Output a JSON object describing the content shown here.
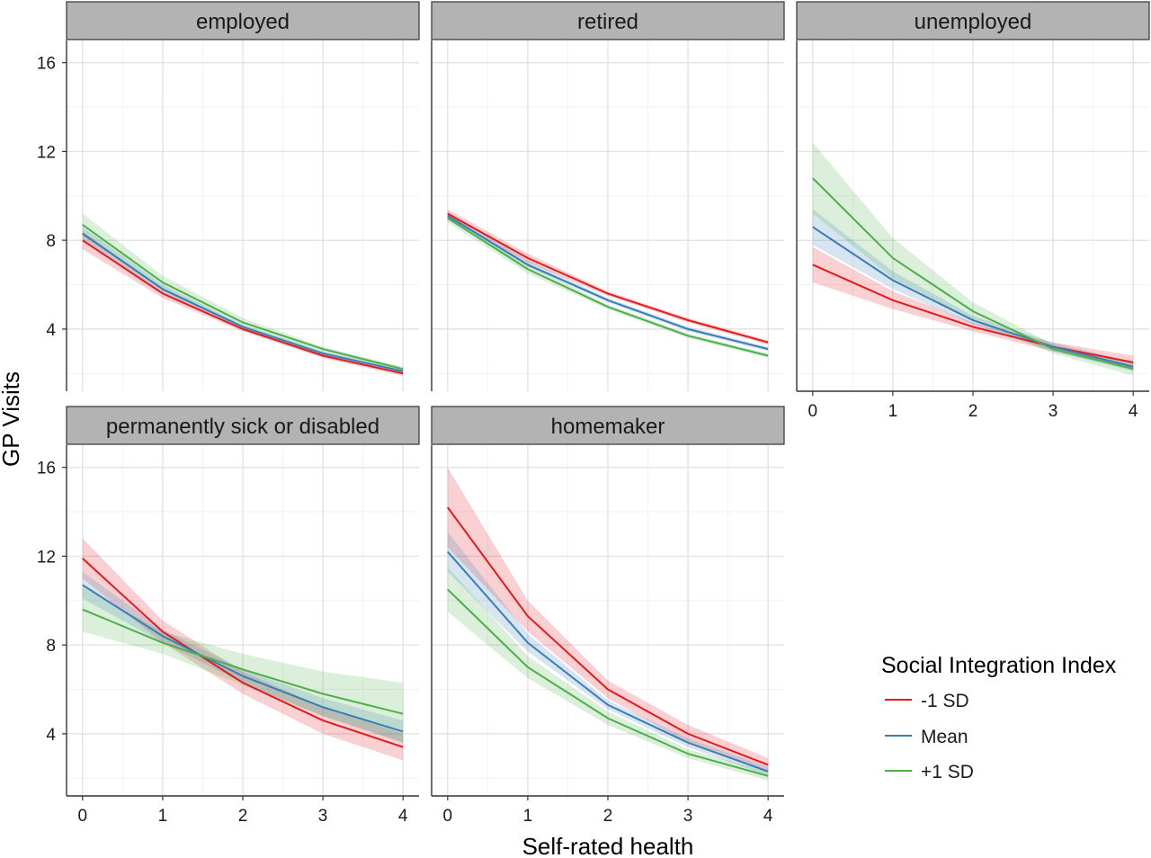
{
  "chart_data": {
    "type": "line",
    "xlabel": "Self-rated health",
    "ylabel": "GP Visits",
    "x": [
      0,
      1,
      2,
      3,
      4
    ],
    "x_ticks": [
      "0",
      "1",
      "2",
      "3",
      "4"
    ],
    "y_ticks": [
      "4",
      "8",
      "12",
      "16"
    ],
    "xlim": [
      -0.2,
      4.2
    ],
    "ylim": [
      1.2,
      17
    ],
    "grid": true,
    "legend": {
      "title": "Social Integration Index",
      "placement": "right",
      "entries": [
        "-1 SD",
        "Mean",
        "+1 SD"
      ]
    },
    "colors": {
      "-1 SD": "#e41a1c",
      "Mean": "#377eb8",
      "+1 SD": "#4daf4a"
    },
    "panels": [
      {
        "title": "employed",
        "series": [
          {
            "name": "-1 SD",
            "values": [
              8.0,
              5.6,
              4.0,
              2.8,
              2.0
            ],
            "lower": [
              7.6,
              5.4,
              3.9,
              2.7,
              1.9
            ],
            "upper": [
              8.4,
              5.8,
              4.1,
              2.9,
              2.1
            ]
          },
          {
            "name": "Mean",
            "values": [
              8.3,
              5.8,
              4.1,
              2.9,
              2.1
            ],
            "lower": [
              8.0,
              5.6,
              4.0,
              2.8,
              2.0
            ],
            "upper": [
              8.6,
              6.0,
              4.2,
              3.0,
              2.2
            ]
          },
          {
            "name": "+1 SD",
            "values": [
              8.7,
              6.1,
              4.3,
              3.1,
              2.2
            ],
            "lower": [
              8.2,
              5.8,
              4.1,
              2.9,
              2.1
            ],
            "upper": [
              9.2,
              6.4,
              4.5,
              3.2,
              2.3
            ]
          }
        ]
      },
      {
        "title": "retired",
        "series": [
          {
            "name": "-1 SD",
            "values": [
              9.2,
              7.2,
              5.6,
              4.4,
              3.4
            ],
            "lower": [
              9.0,
              7.0,
              5.5,
              4.3,
              3.3
            ],
            "upper": [
              9.4,
              7.4,
              5.7,
              4.5,
              3.5
            ]
          },
          {
            "name": "Mean",
            "values": [
              9.1,
              6.9,
              5.3,
              4.0,
              3.1
            ],
            "lower": [
              8.9,
              6.8,
              5.2,
              3.9,
              3.0
            ],
            "upper": [
              9.3,
              7.1,
              5.4,
              4.1,
              3.2
            ]
          },
          {
            "name": "+1 SD",
            "values": [
              9.0,
              6.7,
              5.0,
              3.7,
              2.8
            ],
            "lower": [
              8.8,
              6.5,
              4.9,
              3.6,
              2.7
            ],
            "upper": [
              9.2,
              6.9,
              5.1,
              3.8,
              2.9
            ]
          }
        ]
      },
      {
        "title": "unemployed",
        "series": [
          {
            "name": "-1 SD",
            "values": [
              6.9,
              5.3,
              4.1,
              3.2,
              2.5
            ],
            "lower": [
              6.1,
              4.9,
              3.9,
              3.0,
              2.2
            ],
            "upper": [
              7.7,
              5.7,
              4.3,
              3.4,
              2.8
            ]
          },
          {
            "name": "Mean",
            "values": [
              8.6,
              6.2,
              4.4,
              3.2,
              2.3
            ],
            "lower": [
              7.8,
              5.8,
              4.2,
              3.0,
              2.1
            ],
            "upper": [
              9.4,
              6.6,
              4.6,
              3.4,
              2.5
            ]
          },
          {
            "name": "+1 SD",
            "values": [
              10.8,
              7.2,
              4.8,
              3.1,
              2.2
            ],
            "lower": [
              9.2,
              6.3,
              4.4,
              2.9,
              1.9
            ],
            "upper": [
              12.4,
              8.1,
              5.2,
              3.3,
              2.5
            ]
          }
        ]
      },
      {
        "title": "permanently sick or disabled",
        "series": [
          {
            "name": "-1 SD",
            "values": [
              11.9,
              8.6,
              6.3,
              4.6,
              3.4
            ],
            "lower": [
              11.0,
              8.1,
              5.8,
              4.0,
              2.8
            ],
            "upper": [
              12.8,
              9.1,
              6.8,
              5.2,
              4.0
            ]
          },
          {
            "name": "Mean",
            "values": [
              10.7,
              8.4,
              6.6,
              5.2,
              4.1
            ],
            "lower": [
              10.1,
              8.1,
              6.3,
              4.8,
              3.6
            ],
            "upper": [
              11.3,
              8.7,
              6.9,
              5.6,
              4.6
            ]
          },
          {
            "name": "+1 SD",
            "values": [
              9.6,
              8.1,
              6.9,
              5.8,
              4.9
            ],
            "lower": [
              8.6,
              7.6,
              6.2,
              4.8,
              3.6
            ],
            "upper": [
              10.6,
              8.6,
              7.6,
              6.8,
              6.3
            ]
          }
        ]
      },
      {
        "title": "homemaker",
        "series": [
          {
            "name": "-1 SD",
            "values": [
              14.2,
              9.3,
              6.0,
              4.0,
              2.6
            ],
            "lower": [
              12.4,
              8.6,
              5.6,
              3.6,
              2.3
            ],
            "upper": [
              16.0,
              10.0,
              6.4,
              4.4,
              2.9
            ]
          },
          {
            "name": "Mean",
            "values": [
              12.2,
              8.1,
              5.3,
              3.6,
              2.3
            ],
            "lower": [
              11.3,
              7.7,
              5.1,
              3.4,
              2.1
            ],
            "upper": [
              13.1,
              8.5,
              5.5,
              3.8,
              2.5
            ]
          },
          {
            "name": "+1 SD",
            "values": [
              10.5,
              7.0,
              4.7,
              3.1,
              2.1
            ],
            "lower": [
              9.5,
              6.5,
              4.4,
              2.9,
              1.9
            ],
            "upper": [
              11.5,
              7.5,
              5.0,
              3.3,
              2.3
            ]
          }
        ]
      }
    ]
  }
}
